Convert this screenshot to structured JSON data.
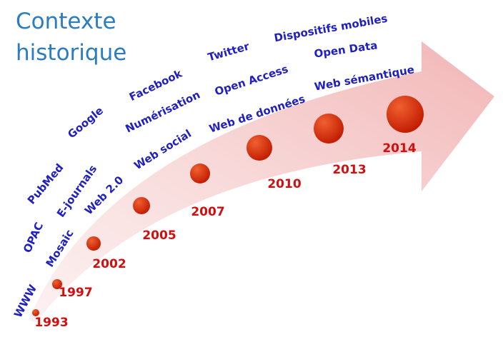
{
  "title": {
    "lines": [
      "Contexte",
      "historique"
    ]
  },
  "milestones": [
    {
      "year": "1993",
      "labels": [
        "WWW"
      ]
    },
    {
      "year": "1997",
      "labels": [
        "OPAC",
        "Mosaic"
      ]
    },
    {
      "year": "2002",
      "labels": [
        "PubMed",
        "E-journals",
        "Web 2.0"
      ]
    },
    {
      "year": "2005",
      "labels": [
        "Google",
        "Web social"
      ]
    },
    {
      "year": "2007",
      "labels": [
        "Facebook",
        "Numérisation"
      ]
    },
    {
      "year": "2010",
      "labels": [
        "Twitter",
        "Open Access",
        "Web de données"
      ]
    },
    {
      "year": "2013",
      "labels": [
        "Open Data"
      ]
    },
    {
      "year": "2014",
      "labels": [
        "Dispositifs mobiles",
        "Web sémantique"
      ]
    }
  ]
}
